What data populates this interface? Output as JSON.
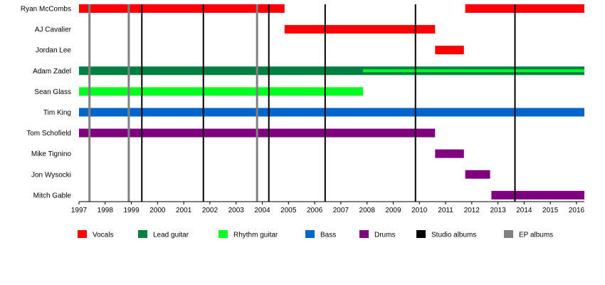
{
  "chart_data": {
    "type": "timeline",
    "xlim": [
      1997,
      2016.3
    ],
    "x_ticks": [
      "1997",
      "1998",
      "1999",
      "2000",
      "2001",
      "2002",
      "2003",
      "2004",
      "2005",
      "2006",
      "2007",
      "2008",
      "2009",
      "2010",
      "2011",
      "2012",
      "2013",
      "2014",
      "2015",
      "2016"
    ],
    "colors": {
      "Vocals": "#ff0000",
      "Lead guitar": "#008040",
      "Rhythm guitar": "#00ff20",
      "Bass": "#0066cc",
      "Drums": "#800080",
      "Studio albums": "#000000",
      "EP albums": "#808080"
    },
    "members": [
      {
        "name": "Ryan McCombs",
        "bars": [
          {
            "role": "Vocals",
            "start": 1997,
            "end": 2004.85
          },
          {
            "role": "Vocals",
            "start": 2011.75,
            "end": 2016.3
          }
        ]
      },
      {
        "name": "AJ Cavalier",
        "bars": [
          {
            "role": "Vocals",
            "start": 2004.85,
            "end": 2010.6
          }
        ]
      },
      {
        "name": "Jordan Lee",
        "bars": [
          {
            "role": "Vocals",
            "start": 2010.6,
            "end": 2011.7
          }
        ]
      },
      {
        "name": "Adam Zadel",
        "bars": [
          {
            "role": "Lead guitar",
            "start": 1997,
            "end": 2016.3
          },
          {
            "role": "Rhythm guitar",
            "start": 2007.85,
            "end": 2016.3,
            "overlay": true
          }
        ]
      },
      {
        "name": "Sean Glass",
        "bars": [
          {
            "role": "Rhythm guitar",
            "start": 1997,
            "end": 2007.85
          }
        ]
      },
      {
        "name": "Tim King",
        "bars": [
          {
            "role": "Bass",
            "start": 1997,
            "end": 2016.3
          }
        ]
      },
      {
        "name": "Tom Schofield",
        "bars": [
          {
            "role": "Drums",
            "start": 1997,
            "end": 2010.6
          }
        ]
      },
      {
        "name": "Mike Tignino",
        "bars": [
          {
            "role": "Drums",
            "start": 2010.6,
            "end": 2011.7
          }
        ]
      },
      {
        "name": "Jon Wysocki",
        "bars": [
          {
            "role": "Drums",
            "start": 2011.75,
            "end": 2012.7
          }
        ]
      },
      {
        "name": "Mitch Gable",
        "bars": [
          {
            "role": "Drums",
            "start": 2012.75,
            "end": 2016.3
          }
        ]
      }
    ],
    "studio_albums": [
      1999.4,
      2001.75,
      2004.25,
      2006.4,
      2009.85,
      2013.65
    ],
    "ep_albums": [
      1997.4,
      1998.9,
      2003.8
    ],
    "legend": [
      "Vocals",
      "Lead guitar",
      "Rhythm guitar",
      "Bass",
      "Drums",
      "Studio albums",
      "EP albums"
    ],
    "legend_position": "bottom"
  }
}
